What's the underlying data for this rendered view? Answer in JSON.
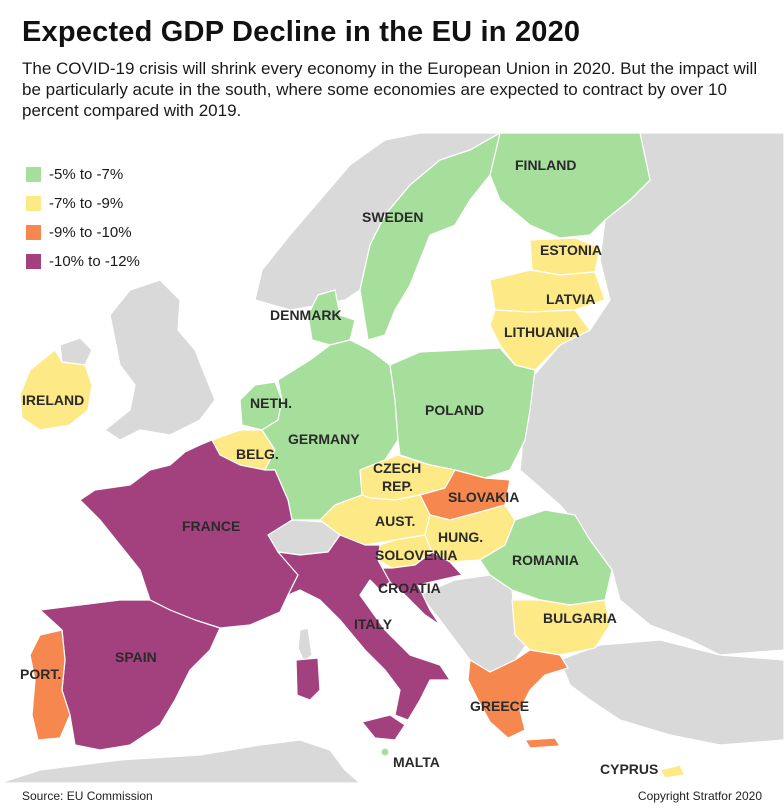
{
  "header": {
    "title": "Expected GDP Decline in the EU in 2020",
    "subtitle": "The COVID-19 crisis will shrink every economy in the European Union in 2020. But the impact will be particularly acute in the south, where some economies are expected to contract by over 10 percent compared with 2019."
  },
  "colors": {
    "sea": "#ffffff",
    "non_eu_land": "#d9d9d9",
    "band_5_7": "#a6de9b",
    "band_7_9": "#fde985",
    "band_9_10": "#f6874f",
    "band_10_12": "#a3417f"
  },
  "legend": {
    "items": [
      {
        "label": "-5% to -7%",
        "color": "#a6de9b"
      },
      {
        "label": "-7% to -9%",
        "color": "#fde985"
      },
      {
        "label": "-9% to -10%",
        "color": "#f6874f"
      },
      {
        "label": "-10% to -12%",
        "color": "#a3417f"
      }
    ]
  },
  "countries": [
    {
      "name": "FINLAND",
      "band": "-5% to -7%"
    },
    {
      "name": "SWEDEN",
      "band": "-5% to -7%"
    },
    {
      "name": "ESTONIA",
      "band": "-7% to -9%"
    },
    {
      "name": "LATVIA",
      "band": "-7% to -9%"
    },
    {
      "name": "LITHUANIA",
      "band": "-7% to -9%"
    },
    {
      "name": "DENMARK",
      "band": "-5% to -7%"
    },
    {
      "name": "IRELAND",
      "band": "-7% to -9%"
    },
    {
      "name": "NETH.",
      "band": "-5% to -7%"
    },
    {
      "name": "POLAND",
      "band": "-5% to -7%"
    },
    {
      "name": "GERMANY",
      "band": "-5% to -7%"
    },
    {
      "name": "BELG.",
      "band": "-7% to -9%"
    },
    {
      "name": "CZECH REP.",
      "band": "-7% to -9%"
    },
    {
      "name": "SLOVAKIA",
      "band": "-9% to -10%"
    },
    {
      "name": "FRANCE",
      "band": "-10% to -12%"
    },
    {
      "name": "AUST.",
      "band": "-7% to -9%"
    },
    {
      "name": "HUNG.",
      "band": "-7% to -9%"
    },
    {
      "name": "SOLOVENIA",
      "band": "-7% to -9%"
    },
    {
      "name": "ROMANIA",
      "band": "-5% to -7%"
    },
    {
      "name": "CROATIA",
      "band": "-10% to -12%"
    },
    {
      "name": "BULGARIA",
      "band": "-7% to -9%"
    },
    {
      "name": "ITALY",
      "band": "-10% to -12%"
    },
    {
      "name": "SPAIN",
      "band": "-10% to -12%"
    },
    {
      "name": "PORT.",
      "band": "-9% to -10%"
    },
    {
      "name": "GREECE",
      "band": "-9% to -10%"
    },
    {
      "name": "MALTA",
      "band": "-5% to -7%"
    },
    {
      "name": "CYPRUS",
      "band": "-7% to -9%"
    }
  ],
  "map": {
    "labels": {
      "finland": "FINLAND",
      "sweden": "SWEDEN",
      "estonia": "ESTONIA",
      "latvia": "LATVIA",
      "lithuania": "LITHUANIA",
      "denmark": "DENMARK",
      "ireland": "IRELAND",
      "netherlands": "NETH.",
      "poland": "POLAND",
      "germany": "GERMANY",
      "belgium": "BELG.",
      "czech_line1": "CZECH",
      "czech_line2": "REP.",
      "slovakia": "SLOVAKIA",
      "france": "FRANCE",
      "austria": "AUST.",
      "hungary": "HUNG.",
      "slovenia": "SOLOVENIA",
      "romania": "ROMANIA",
      "croatia": "CROATIA",
      "bulgaria": "BULGARIA",
      "italy": "ITALY",
      "spain": "SPAIN",
      "portugal": "PORT.",
      "greece": "GREECE",
      "malta": "MALTA",
      "cyprus": "CYPRUS"
    }
  },
  "footer": {
    "source": "Source: EU Commission",
    "copyright": "Copyright Stratfor 2020"
  }
}
